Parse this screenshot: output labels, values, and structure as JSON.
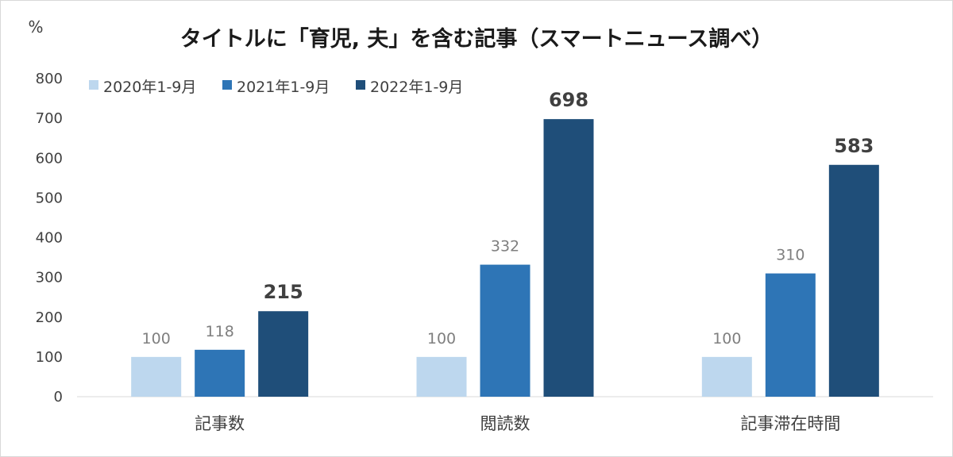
{
  "chart_data": {
    "type": "bar",
    "title": "タイトルに「育児, 夫」を含む記事（スマートニュース調べ）",
    "ylabel": "%",
    "xlabel": "",
    "ylim": [
      0,
      800
    ],
    "yticks": [
      0,
      100,
      200,
      300,
      400,
      500,
      600,
      700,
      800
    ],
    "categories": [
      "記事数",
      "閲読数",
      "記事滞在時間"
    ],
    "series": [
      {
        "name": "2020年1-9月",
        "values": [
          100,
          100,
          100
        ],
        "color": "#bdd7ee"
      },
      {
        "name": "2021年1-9月",
        "values": [
          118,
          332,
          310
        ],
        "color": "#2e75b6"
      },
      {
        "name": "2022年1-9月",
        "values": [
          215,
          698,
          583
        ],
        "color": "#1f4e79"
      }
    ],
    "legend_position": "top-left",
    "grid": false,
    "emphasized_series_index": 2
  }
}
